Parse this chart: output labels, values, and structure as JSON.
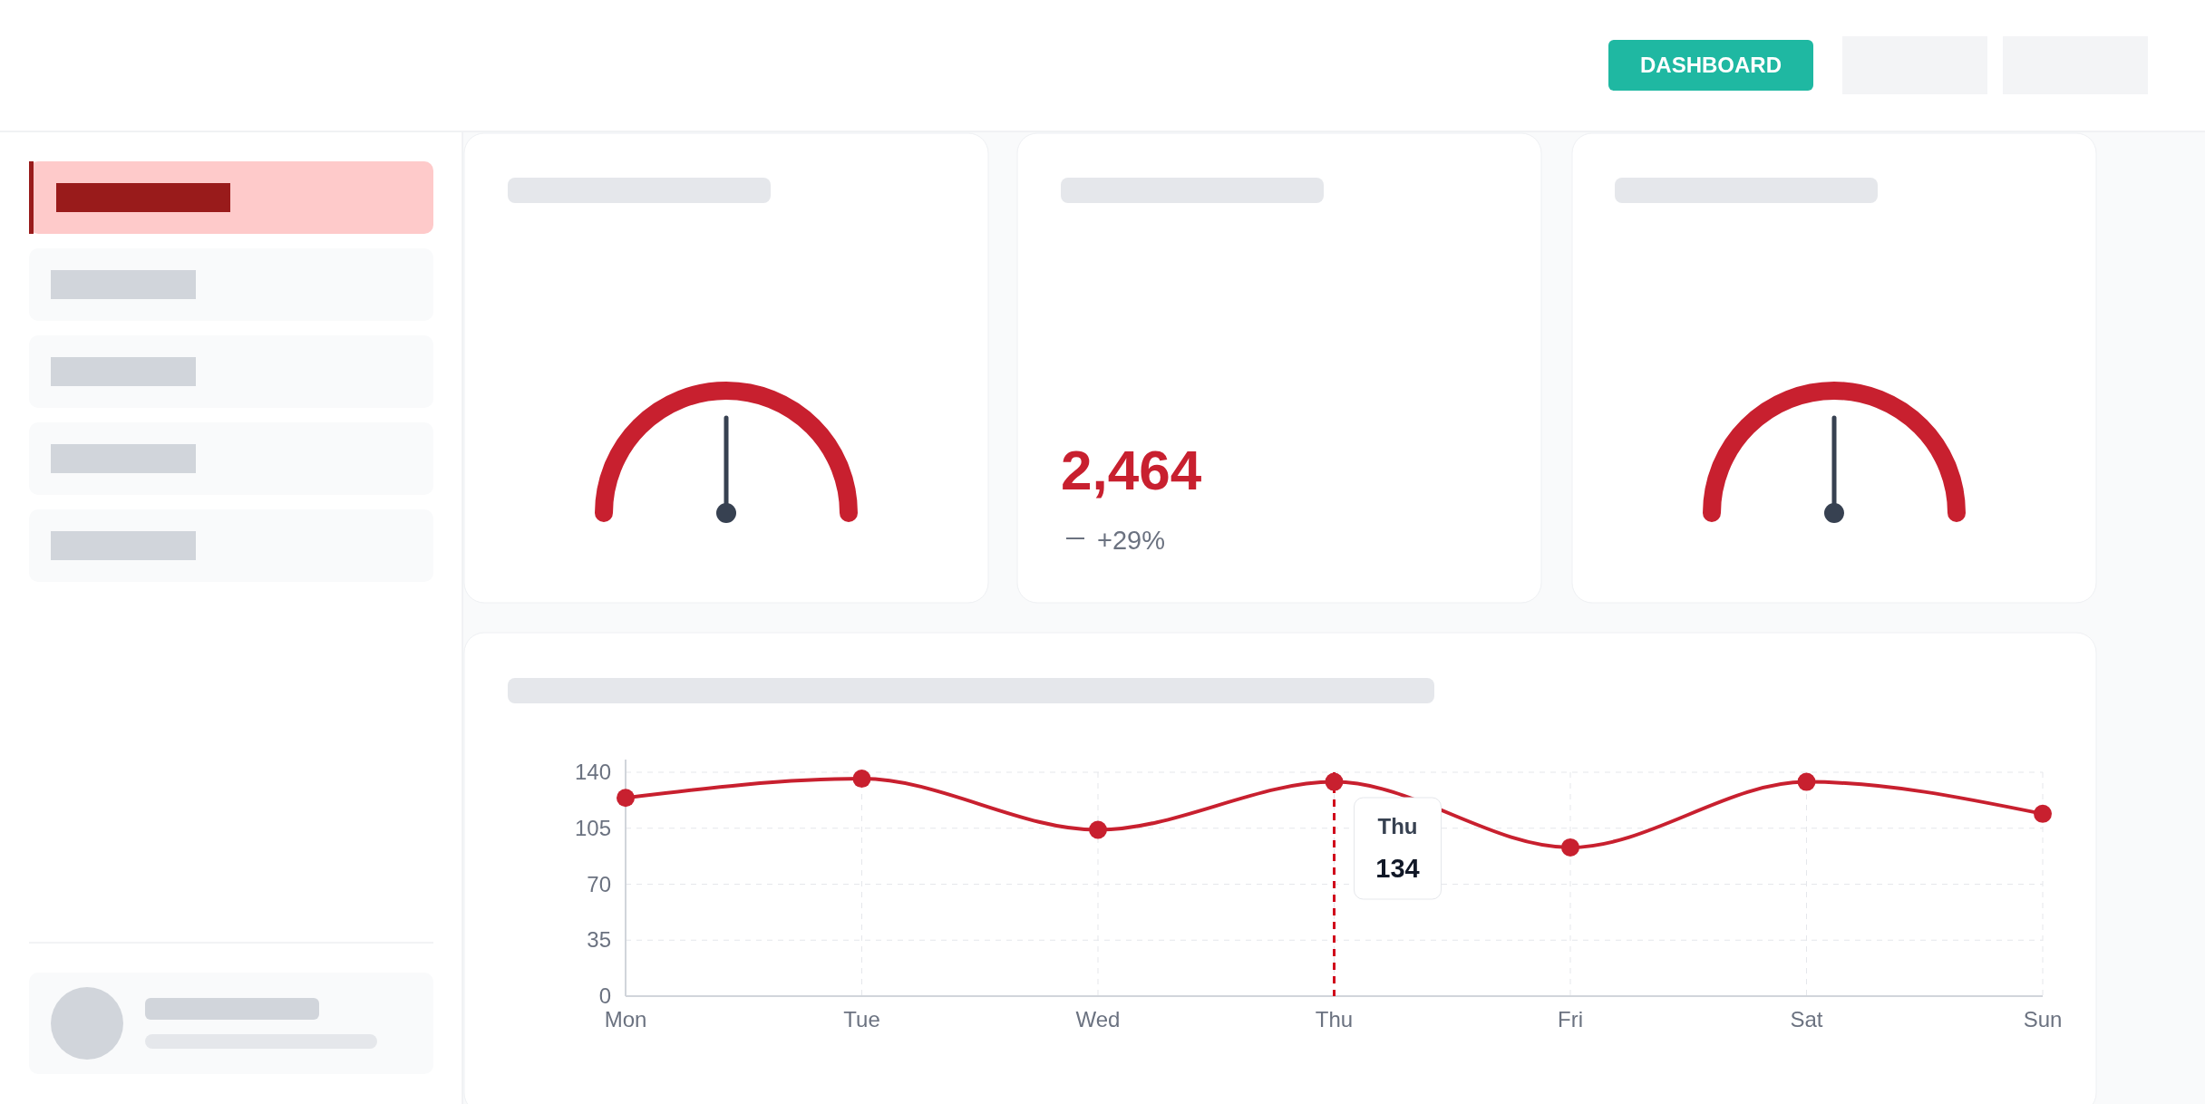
{
  "chart_data": [
    {
      "type": "other",
      "annotations": [
        "DASHBOARD"
      ]
    },
    {
      "type": "other",
      "annotations": [
        "2,464",
        "+29%"
      ]
    },
    {
      "type": "line",
      "categories": [
        "Mon",
        "Tue",
        "Wed",
        "Thu",
        "Fri",
        "Sat",
        "Sun"
      ],
      "series": [
        {
          "color": "#c8202f",
          "values": [
            124,
            136,
            104,
            134,
            93,
            134,
            114
          ]
        }
      ],
      "ylim": [
        0,
        140
      ],
      "yticks": [
        0,
        35,
        70,
        105,
        140
      ],
      "grid": true,
      "marker": "circle",
      "line_style": "solid",
      "ref_lines": [
        {
          "axis": "x",
          "value": "Thu",
          "color": "#d0021b",
          "line_style": "dashed"
        }
      ],
      "annotations": [
        "Thu",
        "134"
      ]
    }
  ]
}
